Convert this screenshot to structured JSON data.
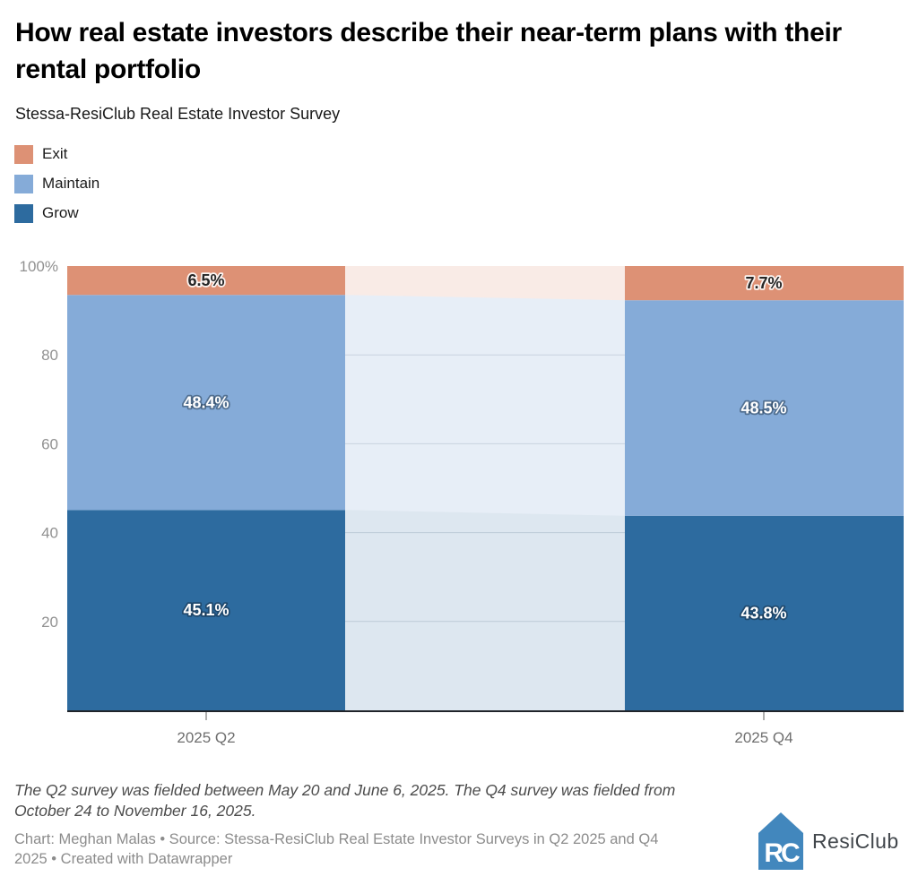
{
  "header": {
    "title": "How real estate investors describe their near-term plans with their rental portfolio",
    "subtitle": "Stessa-ResiClub Real Estate Investor Survey"
  },
  "legend": {
    "items": [
      {
        "label": "Exit",
        "color": "#dd9175"
      },
      {
        "label": "Maintain",
        "color": "#85abd8"
      },
      {
        "label": "Grow",
        "color": "#2d6b9f"
      }
    ]
  },
  "chart_data": {
    "type": "bar",
    "subtype": "stacked-100pct-columns-with-connecting-area",
    "title": "How real estate investors describe their near-term plans with their rental portfolio",
    "categories": [
      "2025 Q2",
      "2025 Q4"
    ],
    "series": [
      {
        "name": "Grow",
        "values": [
          45.1,
          43.8
        ],
        "color": "#2d6b9f",
        "faded_opacity": 0.16,
        "label_color": "#ffffff",
        "label_halo": "rgba(20,40,60,0.5)"
      },
      {
        "name": "Maintain",
        "values": [
          48.4,
          48.5
        ],
        "color": "#85abd8",
        "faded_opacity": 0.2,
        "label_color": "#ffffff",
        "label_halo": "rgba(20,40,60,0.45)"
      },
      {
        "name": "Exit",
        "values": [
          6.5,
          7.7
        ],
        "color": "#dd9175",
        "faded_opacity": 0.18,
        "label_color": "#262626",
        "label_halo": "rgba(255,255,255,0.9)"
      }
    ],
    "value_suffix": "%",
    "ylim": [
      0,
      100
    ],
    "y_ticks": [
      {
        "value": 100,
        "label": "100%"
      },
      {
        "value": 80,
        "label": "80"
      },
      {
        "value": 60,
        "label": "60"
      },
      {
        "value": 40,
        "label": "40"
      },
      {
        "value": 20,
        "label": "20"
      }
    ],
    "grid": true,
    "grid_color": "#d9dde2",
    "axis_color": "#20242a",
    "legend_position": "top-left",
    "xlabel": "",
    "ylabel": ""
  },
  "footer": {
    "note": "The Q2 survey was fielded between May 20 and June 6, 2025. The Q4 survey was fielded from October 24 to November 16, 2025.",
    "byline": "Chart: Meghan Malas • Source: Stessa-ResiClub Real Estate Investor Surveys in Q2 2025 and Q4 2025 • Created with Datawrapper",
    "logo_text": "ResiClub",
    "logo_monogram": "RC",
    "logo_color": "#4287bd"
  }
}
